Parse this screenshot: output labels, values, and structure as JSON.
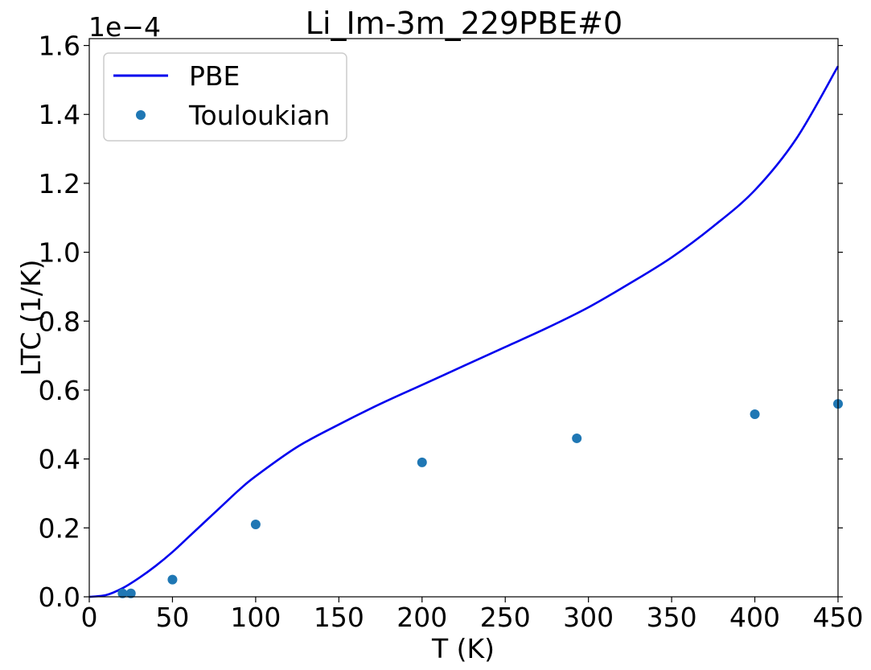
{
  "chart_data": {
    "type": "line",
    "title": "Li_Im-3m_229PBE#0",
    "xlabel": "T (K)",
    "ylabel": "LTC (1/K)",
    "y_offset_label": "1e−4",
    "xlim": [
      0,
      450
    ],
    "ylim": [
      0,
      1.62
    ],
    "x_ticks": [
      0,
      50,
      100,
      150,
      200,
      250,
      300,
      350,
      400,
      450
    ],
    "x_tick_labels": [
      "0",
      "50",
      "100",
      "150",
      "200",
      "250",
      "300",
      "350",
      "400",
      "450"
    ],
    "y_ticks": [
      0,
      0.2,
      0.4,
      0.6,
      0.8,
      1.0,
      1.2,
      1.4,
      1.6
    ],
    "y_tick_labels": [
      "0.0",
      "0.2",
      "0.4",
      "0.6",
      "0.8",
      "1.0",
      "1.2",
      "1.4",
      "1.6"
    ],
    "grid": false,
    "legend_position": "top-left",
    "series": [
      {
        "name": "PBE",
        "kind": "line",
        "color": "#0000ee",
        "x": [
          0,
          10,
          20,
          30,
          40,
          50,
          60,
          70,
          80,
          90,
          100,
          125,
          150,
          175,
          200,
          225,
          250,
          275,
          300,
          325,
          350,
          375,
          400,
          425,
          450
        ],
        "y": [
          0.0,
          0.005,
          0.025,
          0.055,
          0.09,
          0.13,
          0.175,
          0.22,
          0.265,
          0.31,
          0.35,
          0.435,
          0.5,
          0.56,
          0.615,
          0.67,
          0.725,
          0.78,
          0.84,
          0.91,
          0.985,
          1.075,
          1.18,
          1.33,
          1.54
        ]
      },
      {
        "name": "Touloukian",
        "kind": "scatter",
        "color": "#1f77b4",
        "x": [
          20,
          25,
          50,
          100,
          200,
          293,
          400,
          450
        ],
        "y": [
          0.01,
          0.01,
          0.05,
          0.21,
          0.39,
          0.46,
          0.53,
          0.56
        ]
      }
    ]
  }
}
